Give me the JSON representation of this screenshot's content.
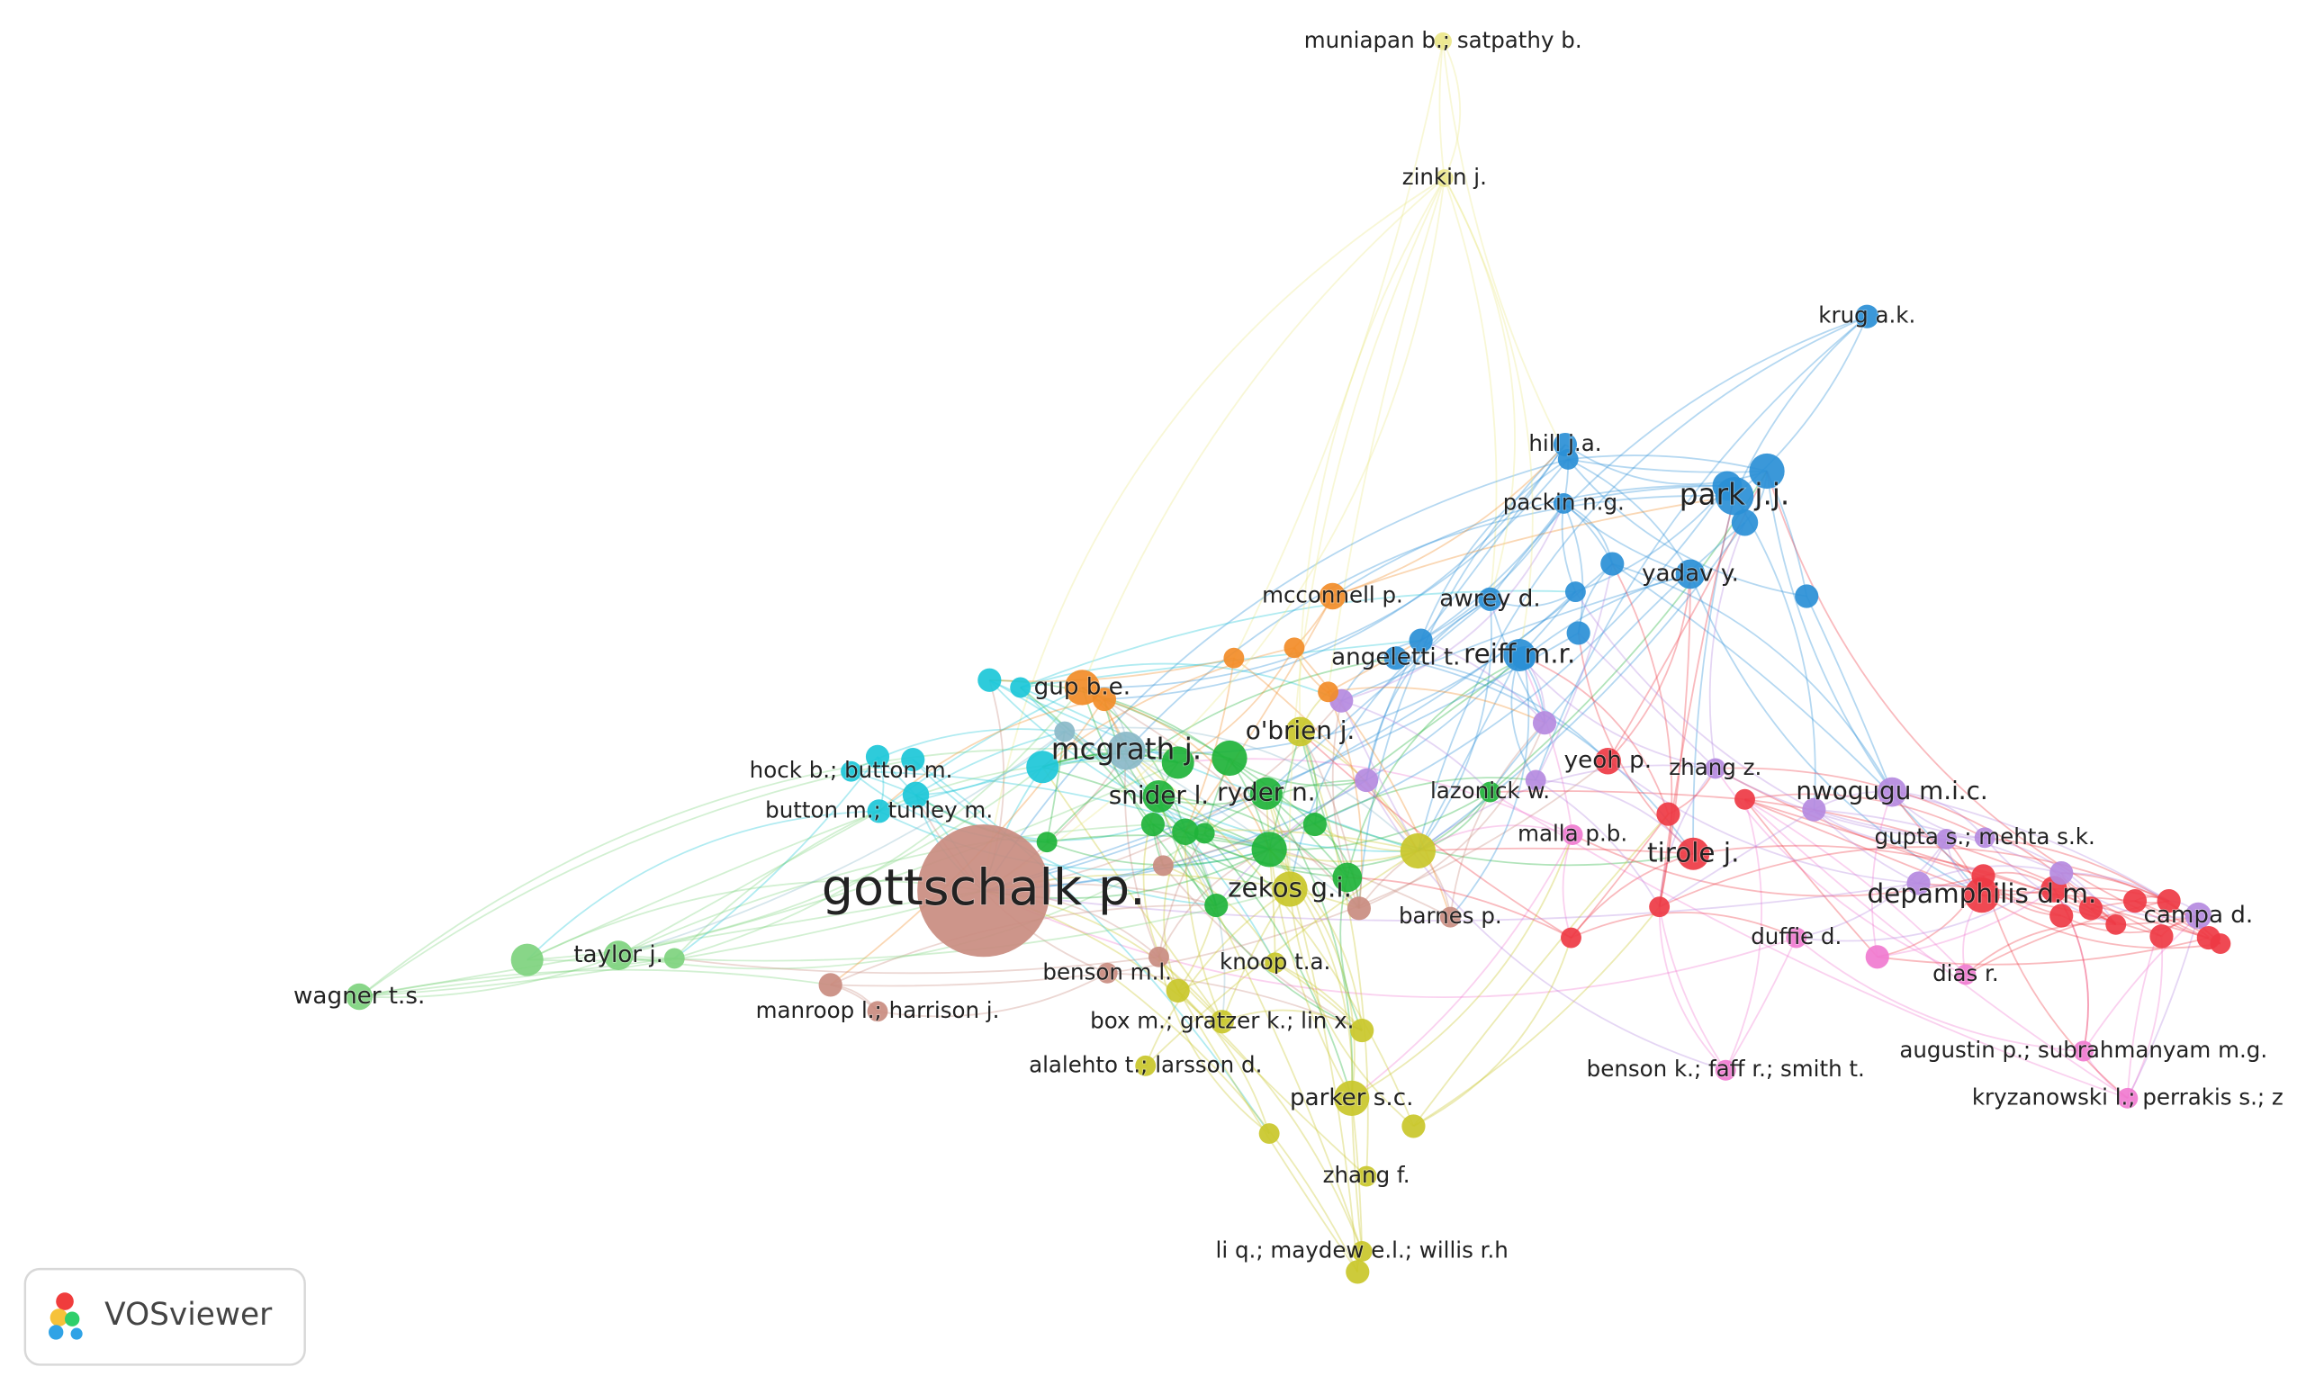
{
  "nodes": [
    {
      "label": "muniapan b.; satpathy b."
    },
    {
      "label": "zinkin j."
    },
    {
      "label": "krug a.k."
    },
    {
      "label": "hill j.a."
    },
    {
      "label": "park j.j."
    },
    {
      "label": "packin n.g."
    },
    {
      "label": "yadav y."
    },
    {
      "label": "mcconnell p."
    },
    {
      "label": "awrey d."
    },
    {
      "label": "angeletti t."
    },
    {
      "label": "reiff m.r."
    },
    {
      "label": "gup b.e."
    },
    {
      "label": "o'brien j."
    },
    {
      "label": "mcgrath j."
    },
    {
      "label": "yeoh p."
    },
    {
      "label": "zhang z."
    },
    {
      "label": "hock b.; button m."
    },
    {
      "label": "nwogugu m.i.c."
    },
    {
      "label": "lazonick w."
    },
    {
      "label": "snider l."
    },
    {
      "label": "ryder n."
    },
    {
      "label": "button m.; tunley m."
    },
    {
      "label": "malla p.b."
    },
    {
      "label": "gupta s.; mehta s.k."
    },
    {
      "label": "tirole j."
    },
    {
      "label": "gottschalk p."
    },
    {
      "label": "zekos g.i."
    },
    {
      "label": "depamphilis d.m."
    },
    {
      "label": "campa d."
    },
    {
      "label": "barnes p."
    },
    {
      "label": "duffie d."
    },
    {
      "label": "taylor j."
    },
    {
      "label": "knoop t.a."
    },
    {
      "label": "benson m.l."
    },
    {
      "label": "dias r."
    },
    {
      "label": "wagner t.s."
    },
    {
      "label": "manroop l.; harrison j."
    },
    {
      "label": "box m.; gratzer k.; lin x."
    },
    {
      "label": "augustin p.; subrahmanyam m.g."
    },
    {
      "label": "alalehto t.; larsson d."
    },
    {
      "label": "benson k.; faff r.; smith t."
    },
    {
      "label": "parker s.c."
    },
    {
      "label": "kryzanowski l.; perrakis s.; z"
    },
    {
      "label": "zhang f."
    },
    {
      "label": "li q.; maydew e.l.; willis r.h"
    }
  ],
  "logo": {
    "text": "VOSviewer"
  }
}
